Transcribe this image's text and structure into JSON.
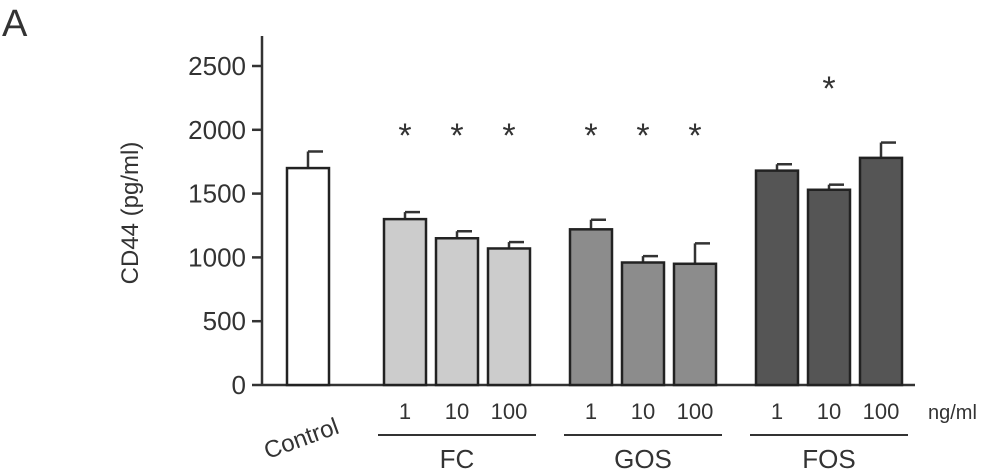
{
  "panel_label": "A",
  "chart_data": {
    "type": "bar",
    "ylabel": "CD44 (pg/ml)",
    "ylim": [
      0,
      2500
    ],
    "yticks": [
      0,
      500,
      1000,
      1500,
      2000,
      2500
    ],
    "unit_label": "ng/ml",
    "groups": [
      {
        "name": "",
        "bars": [
          {
            "label": "Control",
            "value": 1700,
            "error": 130,
            "color": "#ffffff",
            "significant": false
          }
        ]
      },
      {
        "name": "FC",
        "bars": [
          {
            "label": "1",
            "value": 1300,
            "error": 55,
            "color": "#cccccc",
            "significant": true
          },
          {
            "label": "10",
            "value": 1150,
            "error": 55,
            "color": "#cccccc",
            "significant": true
          },
          {
            "label": "100",
            "value": 1070,
            "error": 50,
            "color": "#cccccc",
            "significant": true
          }
        ]
      },
      {
        "name": "GOS",
        "bars": [
          {
            "label": "1",
            "value": 1220,
            "error": 75,
            "color": "#8c8c8c",
            "significant": true
          },
          {
            "label": "10",
            "value": 960,
            "error": 50,
            "color": "#8c8c8c",
            "significant": true
          },
          {
            "label": "100",
            "value": 950,
            "error": 160,
            "color": "#8c8c8c",
            "significant": true
          }
        ]
      },
      {
        "name": "FOS",
        "bars": [
          {
            "label": "1",
            "value": 1680,
            "error": 50,
            "color": "#555555",
            "significant": false
          },
          {
            "label": "10",
            "value": 1530,
            "error": 40,
            "color": "#555555",
            "significant": true
          },
          {
            "label": "100",
            "value": 1780,
            "error": 120,
            "color": "#555555",
            "significant": false
          }
        ]
      }
    ],
    "significance_marker": "*"
  }
}
